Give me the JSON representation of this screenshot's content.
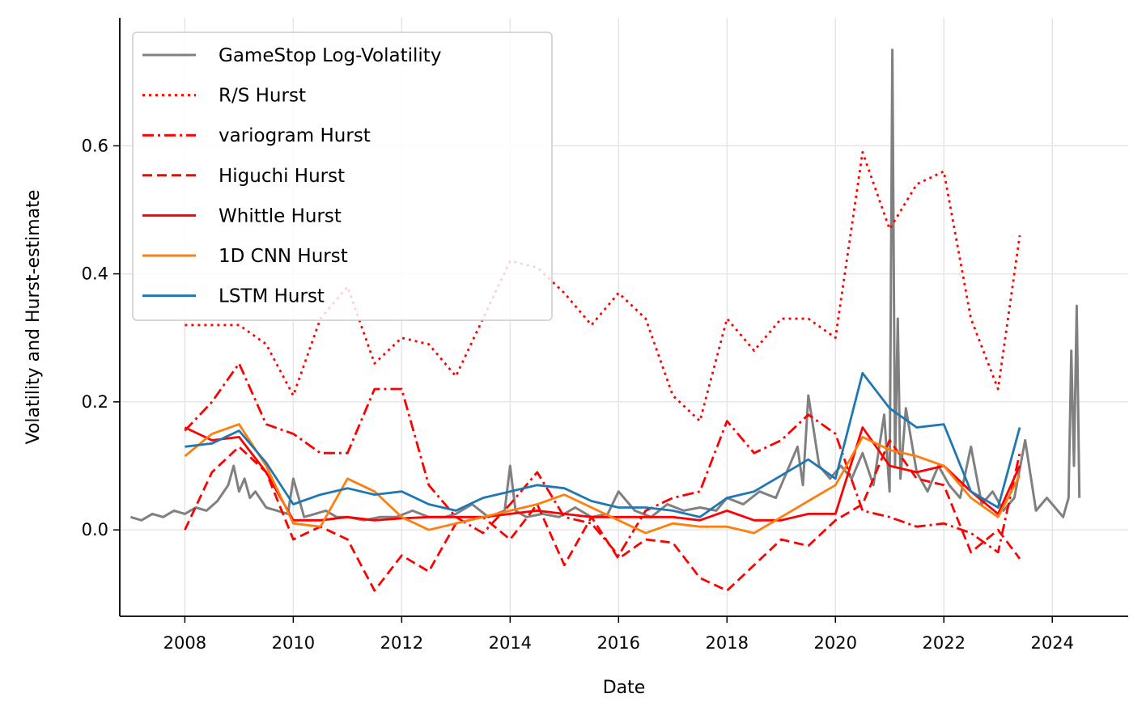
{
  "chart_data": {
    "type": "line",
    "xlabel": "Date",
    "ylabel": "Volatility and Hurst-estimate",
    "x_ticks": [
      "2008",
      "2010",
      "2012",
      "2014",
      "2016",
      "2018",
      "2020",
      "2022",
      "2024"
    ],
    "y_ticks": [
      "0.0",
      "0.2",
      "0.4",
      "0.6"
    ],
    "xlim": [
      2006.8,
      2025.4
    ],
    "ylim": [
      -0.135,
      0.8
    ],
    "grid": true,
    "legend_position": "top-left",
    "series": [
      {
        "name": "GameStop Log-Volatility",
        "color": "#808080",
        "style": "solid",
        "x": [
          2007.0,
          2007.2,
          2007.4,
          2007.6,
          2007.8,
          2008.0,
          2008.2,
          2008.4,
          2008.6,
          2008.8,
          2008.9,
          2009.0,
          2009.1,
          2009.2,
          2009.3,
          2009.5,
          2009.7,
          2009.9,
          2010.0,
          2010.2,
          2010.4,
          2010.6,
          2010.8,
          2011.0,
          2011.3,
          2011.6,
          2011.9,
          2012.2,
          2012.5,
          2012.8,
          2013.0,
          2013.3,
          2013.6,
          2013.9,
          2014.0,
          2014.1,
          2014.3,
          2014.6,
          2014.9,
          2015.2,
          2015.5,
          2015.8,
          2016.0,
          2016.3,
          2016.6,
          2016.9,
          2017.2,
          2017.5,
          2017.8,
          2018.0,
          2018.3,
          2018.6,
          2018.9,
          2019.1,
          2019.3,
          2019.4,
          2019.5,
          2019.7,
          2019.9,
          2020.1,
          2020.3,
          2020.5,
          2020.7,
          2020.9,
          2021.0,
          2021.05,
          2021.1,
          2021.15,
          2021.2,
          2021.3,
          2021.5,
          2021.7,
          2021.9,
          2022.1,
          2022.3,
          2022.5,
          2022.7,
          2022.9,
          2023.1,
          2023.3,
          2023.5,
          2023.7,
          2023.9,
          2024.1,
          2024.2,
          2024.3,
          2024.35,
          2024.4,
          2024.45,
          2024.5
        ],
        "values": [
          0.02,
          0.015,
          0.025,
          0.02,
          0.03,
          0.025,
          0.035,
          0.03,
          0.045,
          0.07,
          0.1,
          0.06,
          0.08,
          0.05,
          0.06,
          0.035,
          0.03,
          0.025,
          0.08,
          0.02,
          0.025,
          0.03,
          0.02,
          0.02,
          0.015,
          0.02,
          0.02,
          0.03,
          0.02,
          0.02,
          0.025,
          0.04,
          0.02,
          0.03,
          0.1,
          0.03,
          0.02,
          0.025,
          0.02,
          0.035,
          0.02,
          0.025,
          0.06,
          0.03,
          0.02,
          0.04,
          0.03,
          0.035,
          0.03,
          0.05,
          0.04,
          0.06,
          0.05,
          0.09,
          0.13,
          0.07,
          0.21,
          0.1,
          0.08,
          0.1,
          0.08,
          0.12,
          0.07,
          0.18,
          0.06,
          0.75,
          0.1,
          0.33,
          0.08,
          0.19,
          0.09,
          0.06,
          0.1,
          0.07,
          0.05,
          0.13,
          0.04,
          0.06,
          0.03,
          0.05,
          0.14,
          0.03,
          0.05,
          0.03,
          0.02,
          0.05,
          0.28,
          0.1,
          0.35,
          0.05
        ]
      },
      {
        "name": "R/S Hurst",
        "color": "#ff0000",
        "style": "dotted",
        "x": [
          2008.0,
          2008.5,
          2009.0,
          2009.5,
          2010.0,
          2010.5,
          2011.0,
          2011.5,
          2012.0,
          2012.5,
          2013.0,
          2013.5,
          2014.0,
          2014.5,
          2015.0,
          2015.5,
          2016.0,
          2016.5,
          2017.0,
          2017.5,
          2018.0,
          2018.5,
          2019.0,
          2019.5,
          2020.0,
          2020.5,
          2021.0,
          2021.5,
          2022.0,
          2022.5,
          2023.0,
          2023.4
        ],
        "values": [
          0.32,
          0.32,
          0.32,
          0.29,
          0.21,
          0.33,
          0.38,
          0.26,
          0.3,
          0.29,
          0.24,
          0.33,
          0.42,
          0.41,
          0.37,
          0.32,
          0.37,
          0.33,
          0.21,
          0.17,
          0.33,
          0.28,
          0.33,
          0.33,
          0.3,
          0.59,
          0.47,
          0.54,
          0.56,
          0.33,
          0.22,
          0.46
        ]
      },
      {
        "name": "variogram Hurst",
        "color": "#ff0000",
        "style": "dashdot",
        "x": [
          2008.0,
          2008.5,
          2009.0,
          2009.5,
          2010.0,
          2010.5,
          2011.0,
          2011.5,
          2012.0,
          2012.5,
          2013.0,
          2013.5,
          2014.0,
          2014.5,
          2015.0,
          2015.5,
          2016.0,
          2016.5,
          2017.0,
          2017.5,
          2018.0,
          2018.5,
          2019.0,
          2019.5,
          2020.0,
          2020.5,
          2021.0,
          2021.5,
          2022.0,
          2022.5,
          2023.0,
          2023.4
        ],
        "values": [
          0.155,
          0.2,
          0.26,
          0.165,
          0.15,
          0.12,
          0.12,
          0.22,
          0.22,
          0.07,
          0.02,
          -0.005,
          0.04,
          0.09,
          0.02,
          0.01,
          -0.04,
          0.03,
          0.05,
          0.06,
          0.17,
          0.12,
          0.14,
          0.18,
          0.15,
          0.03,
          0.02,
          0.005,
          0.01,
          -0.005,
          -0.035,
          0.12
        ]
      },
      {
        "name": "Higuchi Hurst",
        "color": "#ff0000",
        "style": "dashed",
        "x": [
          2008.0,
          2008.5,
          2009.0,
          2009.5,
          2010.0,
          2010.5,
          2011.0,
          2011.5,
          2012.0,
          2012.5,
          2013.0,
          2013.5,
          2014.0,
          2014.5,
          2015.0,
          2015.5,
          2016.0,
          2016.5,
          2017.0,
          2017.5,
          2018.0,
          2018.5,
          2019.0,
          2019.5,
          2020.0,
          2020.5,
          2021.0,
          2021.5,
          2022.0,
          2022.5,
          2023.0,
          2023.4
        ],
        "values": [
          0.0,
          0.09,
          0.13,
          0.09,
          -0.015,
          0.005,
          -0.015,
          -0.095,
          -0.04,
          -0.065,
          0.01,
          0.02,
          -0.015,
          0.04,
          -0.055,
          0.02,
          -0.045,
          -0.015,
          -0.02,
          -0.075,
          -0.095,
          -0.055,
          -0.015,
          -0.025,
          0.015,
          0.04,
          0.14,
          0.08,
          0.07,
          -0.035,
          0.0,
          -0.045
        ]
      },
      {
        "name": "Whittle Hurst",
        "color": "#ff0000",
        "style": "solid",
        "x": [
          2008.0,
          2008.5,
          2009.0,
          2009.5,
          2010.0,
          2010.5,
          2011.0,
          2011.5,
          2012.0,
          2012.5,
          2013.0,
          2013.5,
          2014.0,
          2014.5,
          2015.0,
          2015.5,
          2016.0,
          2016.5,
          2017.0,
          2017.5,
          2018.0,
          2018.5,
          2019.0,
          2019.5,
          2020.0,
          2020.5,
          2021.0,
          2021.5,
          2022.0,
          2022.5,
          2023.0,
          2023.4
        ],
        "values": [
          0.16,
          0.14,
          0.145,
          0.09,
          0.015,
          0.015,
          0.02,
          0.015,
          0.018,
          0.02,
          0.02,
          0.02,
          0.025,
          0.03,
          0.025,
          0.02,
          0.02,
          0.02,
          0.02,
          0.015,
          0.03,
          0.015,
          0.015,
          0.025,
          0.025,
          0.16,
          0.1,
          0.09,
          0.1,
          0.06,
          0.025,
          0.1
        ]
      },
      {
        "name": "1D CNN Hurst",
        "color": "#ff7f0e",
        "style": "solid",
        "x": [
          2008.0,
          2008.5,
          2009.0,
          2009.5,
          2010.0,
          2010.5,
          2011.0,
          2011.5,
          2012.0,
          2012.5,
          2013.0,
          2013.5,
          2014.0,
          2014.5,
          2015.0,
          2015.5,
          2016.0,
          2016.5,
          2017.0,
          2017.5,
          2018.0,
          2018.5,
          2019.0,
          2019.5,
          2020.0,
          2020.5,
          2021.0,
          2021.5,
          2022.0,
          2022.5,
          2023.0,
          2023.4
        ],
        "values": [
          0.115,
          0.15,
          0.165,
          0.1,
          0.01,
          0.005,
          0.08,
          0.06,
          0.02,
          0.0,
          0.01,
          0.02,
          0.03,
          0.04,
          0.055,
          0.035,
          0.015,
          -0.005,
          0.01,
          0.005,
          0.005,
          -0.005,
          0.02,
          0.045,
          0.07,
          0.145,
          0.125,
          0.115,
          0.1,
          0.05,
          0.02,
          0.085
        ]
      },
      {
        "name": "LSTM Hurst",
        "color": "#1f77b4",
        "style": "solid",
        "x": [
          2008.0,
          2008.5,
          2009.0,
          2009.5,
          2010.0,
          2010.5,
          2011.0,
          2011.5,
          2012.0,
          2012.5,
          2013.0,
          2013.5,
          2014.0,
          2014.5,
          2015.0,
          2015.5,
          2016.0,
          2016.5,
          2017.0,
          2017.5,
          2018.0,
          2018.5,
          2019.0,
          2019.5,
          2020.0,
          2020.5,
          2021.0,
          2021.5,
          2022.0,
          2022.5,
          2023.0,
          2023.4
        ],
        "values": [
          0.13,
          0.135,
          0.155,
          0.105,
          0.04,
          0.055,
          0.065,
          0.055,
          0.06,
          0.04,
          0.03,
          0.05,
          0.06,
          0.07,
          0.065,
          0.045,
          0.035,
          0.035,
          0.03,
          0.02,
          0.05,
          0.06,
          0.085,
          0.11,
          0.08,
          0.245,
          0.19,
          0.16,
          0.165,
          0.06,
          0.035,
          0.16
        ]
      }
    ]
  }
}
